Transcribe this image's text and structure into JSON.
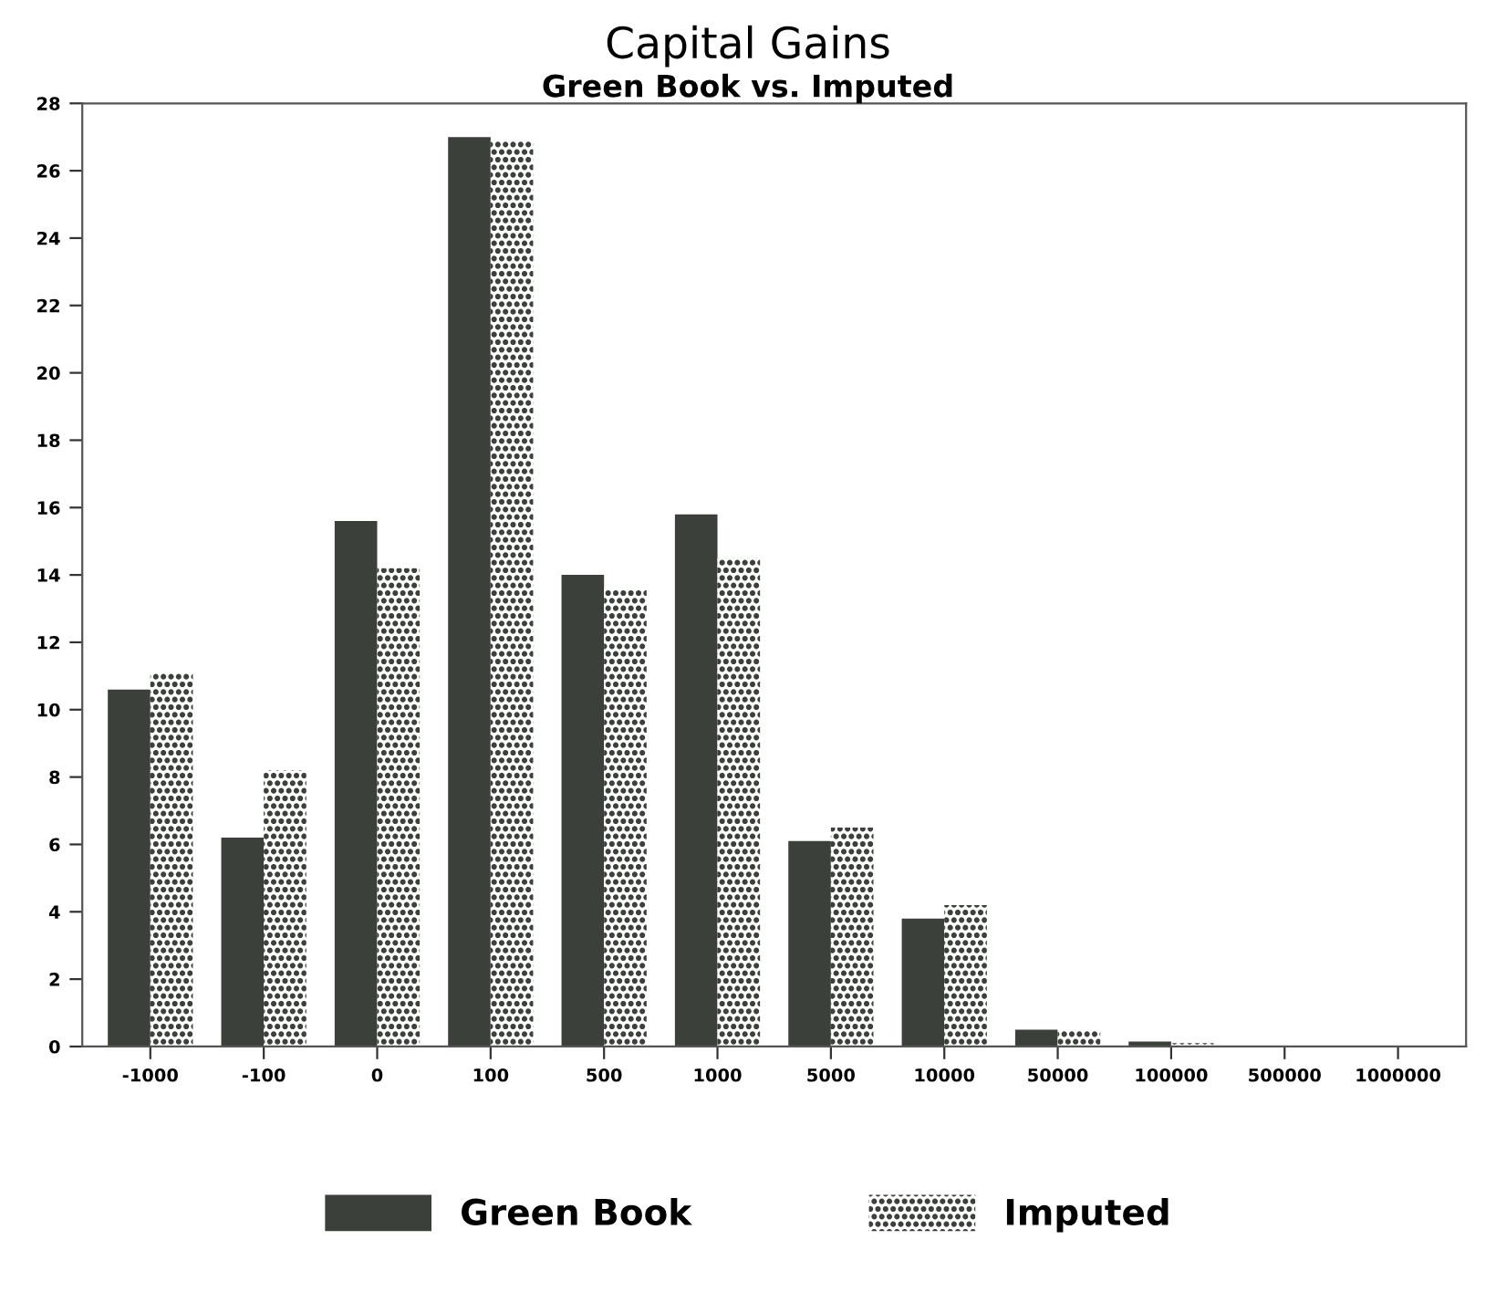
{
  "chart_data": {
    "type": "bar",
    "title": "Capital Gains",
    "subtitle": "Green Book vs. Imputed",
    "categories": [
      "-1000",
      "-100",
      "0",
      "100",
      "500",
      "1000",
      "5000",
      "10000",
      "50000",
      "100000",
      "500000",
      "1000000"
    ],
    "series": [
      {
        "name": "Green Book",
        "color": "#3b403b",
        "values": [
          10.6,
          6.2,
          15.6,
          27,
          14,
          15.8,
          6.1,
          3.8,
          0.5,
          0.15,
          0,
          0
        ]
      },
      {
        "name": "Imputed",
        "color": "#3b403b",
        "values": [
          11.1,
          8.2,
          14.2,
          26.9,
          13.6,
          14.5,
          6.5,
          4.2,
          0.5,
          0.1,
          0,
          0
        ]
      }
    ],
    "ylim": [
      0,
      28
    ],
    "yticks": [
      0,
      2,
      4,
      6,
      8,
      10,
      12,
      14,
      16,
      18,
      20,
      22,
      24,
      26,
      28
    ],
    "grid": false,
    "legend": "bottom"
  }
}
